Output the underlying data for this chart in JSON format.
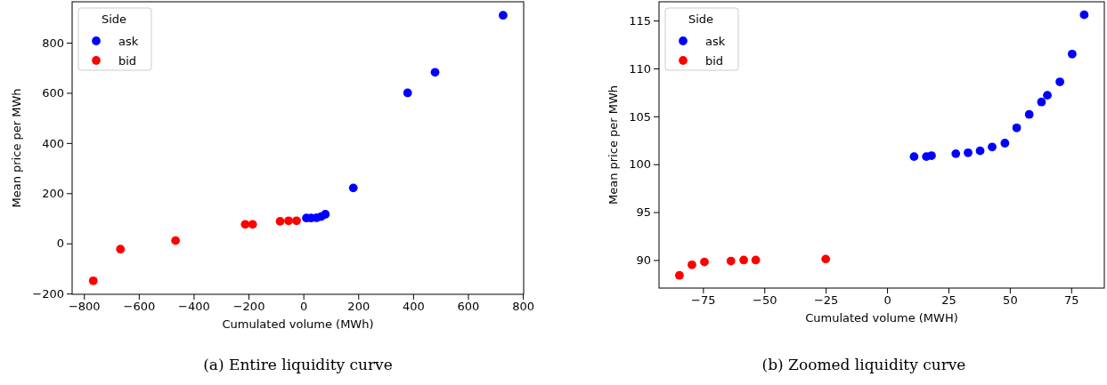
{
  "chart_data": [
    {
      "type": "scatter",
      "xlabel": "Cumulated volume (MWh)",
      "ylabel": "Mean price per MWh",
      "legend_title": "Side",
      "legend": "top left",
      "marker": "circle",
      "annotations": [
        "(a) Entire liquidity curve"
      ],
      "xlim": [
        -843,
        803
      ],
      "xticks": [
        {
          "value": -800,
          "label": "−800"
        },
        {
          "value": -600,
          "label": "−600"
        },
        {
          "value": -400,
          "label": "−400"
        },
        {
          "value": -200,
          "label": "−200"
        },
        0,
        200,
        400,
        600,
        800
      ],
      "ylim": [
        -203,
        963
      ],
      "yticks": [
        {
          "value": -200,
          "label": "−200"
        },
        0,
        200,
        400,
        600,
        800
      ],
      "series": [
        {
          "name": "ask",
          "color": "#0000ff",
          "x": [
            11,
            28,
            48,
            65,
            80,
            182,
            380,
            480,
            728
          ],
          "values": [
            101,
            101,
            102,
            107,
            116,
            221,
            600,
            682,
            909
          ]
        },
        {
          "name": "bid",
          "color": "#ff0000",
          "x": [
            -766,
            -667,
            -466,
            -212,
            -185,
            -85,
            -54,
            -25
          ],
          "values": [
            -149,
            -23,
            11,
            76,
            76,
            88,
            90,
            90
          ]
        }
      ]
    },
    {
      "type": "scatter",
      "xlabel": "Cumulated volume (MWH)",
      "ylabel": "Mean price per MWh",
      "legend_title": "Side",
      "legend": "top left",
      "marker": "circle",
      "annotations": [
        "(b) Zoomed liquidity curve"
      ],
      "xlim": [
        -92.9,
        88.5
      ],
      "xticks": [
        {
          "value": -75,
          "label": "−75"
        },
        {
          "value": -50,
          "label": "−50"
        },
        {
          "value": -25,
          "label": "−25"
        },
        0,
        25,
        50,
        75
      ],
      "ylim": [
        87.07,
        116.96
      ],
      "yticks": [
        90,
        95,
        100,
        105,
        110,
        115
      ],
      "series": [
        {
          "name": "ask",
          "color": "#0000ff",
          "x": [
            11.0,
            16.0,
            18.1,
            28.0,
            33.0,
            37.9,
            42.8,
            48.0,
            52.8,
            57.9,
            62.9,
            65.3,
            70.4,
            75.4,
            80.3
          ],
          "values": [
            100.8,
            100.8,
            100.9,
            101.1,
            101.2,
            101.4,
            101.8,
            102.2,
            103.8,
            105.2,
            106.5,
            107.2,
            108.6,
            111.5,
            115.6
          ]
        },
        {
          "name": "bid",
          "color": "#ff0000",
          "x": [
            -84.6,
            -79.5,
            -74.4,
            -63.6,
            -58.4,
            -53.5,
            -25.0
          ],
          "values": [
            88.4,
            89.5,
            89.8,
            89.9,
            90.0,
            90.0,
            90.1
          ]
        }
      ]
    }
  ]
}
